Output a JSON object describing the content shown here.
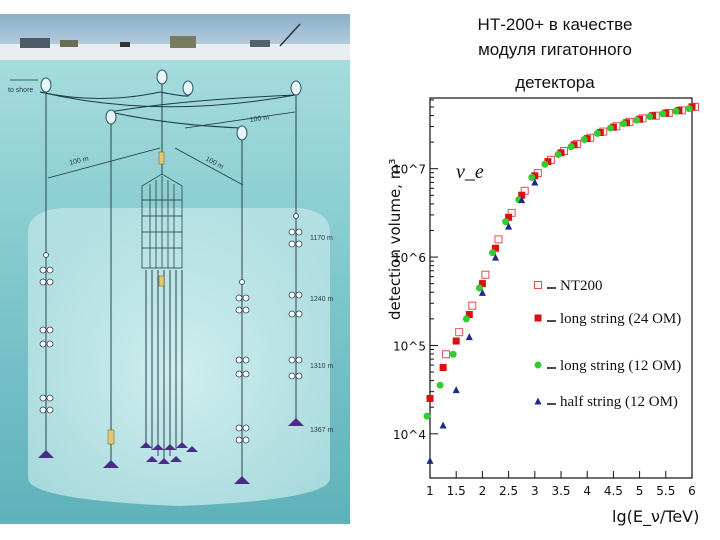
{
  "title": {
    "line1": "НТ-200+ в качестве",
    "line2": "модуля гигатонного",
    "line3": "детектора"
  },
  "diagram": {
    "to_shore": "to shore",
    "dist_labels": [
      "100 m",
      "100 m",
      "100 m"
    ],
    "depth_labels": [
      "1170 m",
      "1240 m",
      "1310 m",
      "1367 m"
    ]
  },
  "chart_data": {
    "type": "scatter",
    "xlabel": "lg(E_ν/TeV)",
    "ylabel": "detection volume, m³",
    "annotation": "ν_e",
    "x_ticks": [
      "1",
      "1.5",
      "2",
      "2.5",
      "3",
      "3.5",
      "4",
      "4.5",
      "5",
      "5.5",
      "6"
    ],
    "y_ticks": [
      "10^4",
      "10^5",
      "10^6",
      "10^7"
    ],
    "xlim": [
      1,
      6
    ],
    "ylim_log10": [
      3.5,
      7.8
    ],
    "legend": [
      "NT200",
      "long string (24 OM)",
      "long string (12 OM)",
      "half string (12 OM)"
    ],
    "series": [
      {
        "name": "NT200",
        "marker": "open-square",
        "color": "#e05050",
        "x": [
          1.25,
          1.5,
          1.75,
          2.0,
          2.25,
          2.5,
          2.75,
          3.0,
          3.25,
          3.5,
          3.75,
          4.0,
          4.25,
          4.5,
          4.75,
          5.0,
          5.25,
          5.5,
          5.75,
          6.0
        ],
        "y": [
          4.9,
          5.15,
          5.45,
          5.8,
          6.2,
          6.5,
          6.75,
          6.95,
          7.1,
          7.2,
          7.28,
          7.35,
          7.42,
          7.48,
          7.53,
          7.57,
          7.6,
          7.63,
          7.66,
          7.7
        ]
      },
      {
        "name": "long string (24 OM)",
        "marker": "filled-square",
        "color": "#dd1010",
        "x": [
          1.0,
          1.25,
          1.5,
          1.75,
          2.0,
          2.25,
          2.5,
          2.75,
          3.0,
          3.25,
          3.5,
          3.75,
          4.0,
          4.25,
          4.5,
          4.75,
          5.0,
          5.25,
          5.5,
          5.75,
          6.0
        ],
        "y": [
          4.4,
          4.75,
          5.05,
          5.35,
          5.7,
          6.1,
          6.45,
          6.7,
          6.92,
          7.08,
          7.18,
          7.27,
          7.34,
          7.41,
          7.47,
          7.52,
          7.56,
          7.6,
          7.63,
          7.66,
          7.7
        ]
      },
      {
        "name": "long string (12 OM)",
        "marker": "filled-circle",
        "color": "#33cc33",
        "x": [
          1.0,
          1.25,
          1.5,
          1.75,
          2.0,
          2.25,
          2.5,
          2.75,
          3.0,
          3.25,
          3.5,
          3.75,
          4.0,
          4.25,
          4.5,
          4.75,
          5.0,
          5.25,
          5.5,
          5.75,
          6.0
        ],
        "y": [
          4.2,
          4.55,
          4.9,
          5.3,
          5.65,
          6.05,
          6.4,
          6.65,
          6.9,
          7.05,
          7.16,
          7.25,
          7.33,
          7.4,
          7.46,
          7.51,
          7.55,
          7.59,
          7.62,
          7.65,
          7.68
        ]
      },
      {
        "name": "half string (12 OM)",
        "marker": "filled-triangle",
        "color": "#1c2a8a",
        "x": [
          1.0,
          1.25,
          1.5,
          1.75,
          2.0,
          2.25,
          2.5,
          2.75,
          3.0
        ],
        "y": [
          3.7,
          4.1,
          4.5,
          5.1,
          5.6,
          6.0,
          6.35,
          6.65,
          6.85
        ]
      }
    ]
  }
}
